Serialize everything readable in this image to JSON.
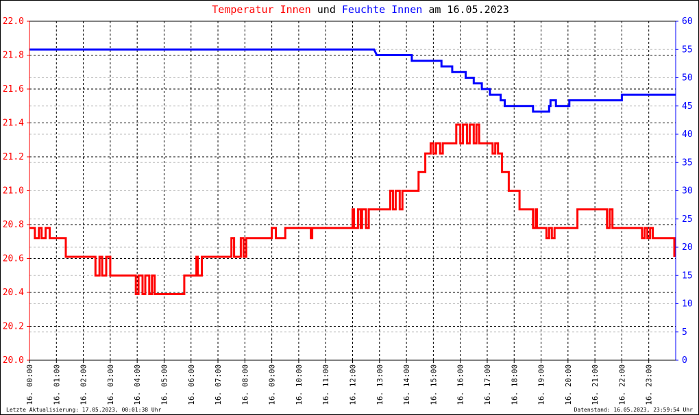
{
  "chart_data": {
    "type": "line",
    "title": {
      "part1": "Temperatur Innen",
      "part2": "und",
      "part3": "Feuchte Innen",
      "part4": "am 16.05.2023"
    },
    "colors": {
      "temperature": "#ff0000",
      "humidity": "#0000ff",
      "title_neutral": "#000000",
      "grid": "#000000",
      "left_axis": "#ff0000",
      "right_axis": "#0000ff"
    },
    "y_left": {
      "min": 20.0,
      "max": 22.0,
      "ticks": [
        20.0,
        20.2,
        20.4,
        20.6,
        20.8,
        21.0,
        21.2,
        21.4,
        21.6,
        21.8,
        22.0
      ],
      "tick_labels": [
        "20.0",
        "20.2",
        "20.4",
        "20.6",
        "20.8",
        "21.0",
        "21.2",
        "21.4",
        "21.6",
        "21.8",
        "22.0"
      ]
    },
    "y_right": {
      "min": 0,
      "max": 60,
      "ticks": [
        0,
        5,
        10,
        15,
        20,
        25,
        30,
        35,
        40,
        45,
        50,
        55,
        60
      ],
      "tick_labels": [
        "0",
        "5",
        "10",
        "15",
        "20",
        "25",
        "30",
        "35",
        "40",
        "45",
        "50",
        "55",
        "60"
      ]
    },
    "x": {
      "min_hour": 0,
      "max_hour": 24,
      "ticks": [
        0,
        1,
        2,
        3,
        4,
        5,
        6,
        7,
        8,
        9,
        10,
        11,
        12,
        13,
        14,
        15,
        16,
        17,
        18,
        19,
        20,
        21,
        22,
        23
      ],
      "tick_labels": [
        "16. 00:00",
        "16. 01:00",
        "16. 02:00",
        "16. 03:00",
        "16. 04:00",
        "16. 05:00",
        "16. 06:00",
        "16. 07:00",
        "16. 08:00",
        "16. 09:00",
        "16. 10:00",
        "16. 11:00",
        "16. 12:00",
        "16. 13:00",
        "16. 14:00",
        "16. 15:00",
        "16. 16:00",
        "16. 17:00",
        "16. 18:00",
        "16. 19:00",
        "16. 20:00",
        "16. 21:00",
        "16. 22:00",
        "16. 23:00"
      ]
    },
    "grid": true,
    "series": [
      {
        "name": "Temperatur Innen",
        "axis": "left",
        "points": [
          [
            0.0,
            20.78
          ],
          [
            0.2,
            20.78
          ],
          [
            0.2,
            20.72
          ],
          [
            0.35,
            20.72
          ],
          [
            0.35,
            20.78
          ],
          [
            0.45,
            20.78
          ],
          [
            0.45,
            20.72
          ],
          [
            0.6,
            20.72
          ],
          [
            0.6,
            20.78
          ],
          [
            0.75,
            20.78
          ],
          [
            0.75,
            20.72
          ],
          [
            1.35,
            20.72
          ],
          [
            1.35,
            20.61
          ],
          [
            2.45,
            20.61
          ],
          [
            2.45,
            20.5
          ],
          [
            2.6,
            20.5
          ],
          [
            2.6,
            20.61
          ],
          [
            2.7,
            20.61
          ],
          [
            2.7,
            20.5
          ],
          [
            2.85,
            20.5
          ],
          [
            2.85,
            20.61
          ],
          [
            3.0,
            20.61
          ],
          [
            3.0,
            20.5
          ],
          [
            3.95,
            20.5
          ],
          [
            3.95,
            20.39
          ],
          [
            4.05,
            20.39
          ],
          [
            4.05,
            20.5
          ],
          [
            4.2,
            20.5
          ],
          [
            4.2,
            20.39
          ],
          [
            4.3,
            20.39
          ],
          [
            4.3,
            20.5
          ],
          [
            4.45,
            20.5
          ],
          [
            4.45,
            20.39
          ],
          [
            4.55,
            20.39
          ],
          [
            4.55,
            20.5
          ],
          [
            4.65,
            20.5
          ],
          [
            4.65,
            20.39
          ],
          [
            5.75,
            20.39
          ],
          [
            5.75,
            20.5
          ],
          [
            6.2,
            20.5
          ],
          [
            6.2,
            20.61
          ],
          [
            6.25,
            20.61
          ],
          [
            6.25,
            20.5
          ],
          [
            6.4,
            20.5
          ],
          [
            6.4,
            20.61
          ],
          [
            7.5,
            20.61
          ],
          [
            7.5,
            20.72
          ],
          [
            7.6,
            20.72
          ],
          [
            7.6,
            20.61
          ],
          [
            7.85,
            20.61
          ],
          [
            7.85,
            20.72
          ],
          [
            7.95,
            20.72
          ],
          [
            7.95,
            20.61
          ],
          [
            8.05,
            20.61
          ],
          [
            8.05,
            20.72
          ],
          [
            9.0,
            20.72
          ],
          [
            9.0,
            20.78
          ],
          [
            9.15,
            20.78
          ],
          [
            9.15,
            20.72
          ],
          [
            9.5,
            20.72
          ],
          [
            9.5,
            20.78
          ],
          [
            10.45,
            20.78
          ],
          [
            10.45,
            20.72
          ],
          [
            10.5,
            20.72
          ],
          [
            10.5,
            20.78
          ],
          [
            12.0,
            20.78
          ],
          [
            12.0,
            20.89
          ],
          [
            12.05,
            20.89
          ],
          [
            12.05,
            20.78
          ],
          [
            12.2,
            20.78
          ],
          [
            12.2,
            20.89
          ],
          [
            12.3,
            20.89
          ],
          [
            12.3,
            20.78
          ],
          [
            12.35,
            20.78
          ],
          [
            12.35,
            20.89
          ],
          [
            12.5,
            20.89
          ],
          [
            12.5,
            20.78
          ],
          [
            12.6,
            20.78
          ],
          [
            12.6,
            20.89
          ],
          [
            13.4,
            20.89
          ],
          [
            13.4,
            21.0
          ],
          [
            13.5,
            21.0
          ],
          [
            13.5,
            20.89
          ],
          [
            13.6,
            20.89
          ],
          [
            13.6,
            21.0
          ],
          [
            13.75,
            21.0
          ],
          [
            13.75,
            20.89
          ],
          [
            13.85,
            20.89
          ],
          [
            13.85,
            21.0
          ],
          [
            14.45,
            21.0
          ],
          [
            14.45,
            21.11
          ],
          [
            14.7,
            21.11
          ],
          [
            14.7,
            21.22
          ],
          [
            14.9,
            21.22
          ],
          [
            14.9,
            21.28
          ],
          [
            15.0,
            21.28
          ],
          [
            15.0,
            21.22
          ],
          [
            15.1,
            21.22
          ],
          [
            15.1,
            21.28
          ],
          [
            15.25,
            21.28
          ],
          [
            15.25,
            21.22
          ],
          [
            15.35,
            21.22
          ],
          [
            15.35,
            21.28
          ],
          [
            15.85,
            21.28
          ],
          [
            15.85,
            21.39
          ],
          [
            16.0,
            21.39
          ],
          [
            16.0,
            21.28
          ],
          [
            16.1,
            21.28
          ],
          [
            16.1,
            21.39
          ],
          [
            16.25,
            21.39
          ],
          [
            16.25,
            21.28
          ],
          [
            16.35,
            21.28
          ],
          [
            16.35,
            21.39
          ],
          [
            16.5,
            21.39
          ],
          [
            16.5,
            21.28
          ],
          [
            16.6,
            21.28
          ],
          [
            16.6,
            21.39
          ],
          [
            16.7,
            21.39
          ],
          [
            16.7,
            21.28
          ],
          [
            17.2,
            21.28
          ],
          [
            17.2,
            21.22
          ],
          [
            17.3,
            21.22
          ],
          [
            17.3,
            21.28
          ],
          [
            17.4,
            21.28
          ],
          [
            17.4,
            21.22
          ],
          [
            17.55,
            21.22
          ],
          [
            17.55,
            21.11
          ],
          [
            17.8,
            21.11
          ],
          [
            17.8,
            21.0
          ],
          [
            18.2,
            21.0
          ],
          [
            18.2,
            20.89
          ],
          [
            18.7,
            20.89
          ],
          [
            18.7,
            20.78
          ],
          [
            18.8,
            20.78
          ],
          [
            18.8,
            20.89
          ],
          [
            18.85,
            20.89
          ],
          [
            18.85,
            20.78
          ],
          [
            19.2,
            20.78
          ],
          [
            19.2,
            20.72
          ],
          [
            19.3,
            20.72
          ],
          [
            19.3,
            20.78
          ],
          [
            19.4,
            20.78
          ],
          [
            19.4,
            20.72
          ],
          [
            19.5,
            20.72
          ],
          [
            19.5,
            20.78
          ],
          [
            20.35,
            20.78
          ],
          [
            20.35,
            20.89
          ],
          [
            21.45,
            20.89
          ],
          [
            21.45,
            20.78
          ],
          [
            21.55,
            20.78
          ],
          [
            21.55,
            20.89
          ],
          [
            21.65,
            20.89
          ],
          [
            21.65,
            20.78
          ],
          [
            22.75,
            20.78
          ],
          [
            22.75,
            20.72
          ],
          [
            22.85,
            20.72
          ],
          [
            22.85,
            20.78
          ],
          [
            22.95,
            20.78
          ],
          [
            22.95,
            20.72
          ],
          [
            23.05,
            20.72
          ],
          [
            23.05,
            20.78
          ],
          [
            23.15,
            20.78
          ],
          [
            23.15,
            20.72
          ],
          [
            23.95,
            20.72
          ],
          [
            23.95,
            20.61
          ]
        ]
      },
      {
        "name": "Feuchte Innen",
        "axis": "right",
        "points": [
          [
            0.0,
            55
          ],
          [
            12.8,
            55
          ],
          [
            12.85,
            54.5
          ],
          [
            12.9,
            54
          ],
          [
            14.2,
            54
          ],
          [
            14.2,
            53
          ],
          [
            15.3,
            53
          ],
          [
            15.3,
            52
          ],
          [
            15.7,
            52
          ],
          [
            15.7,
            51
          ],
          [
            16.2,
            51
          ],
          [
            16.2,
            50
          ],
          [
            16.5,
            50
          ],
          [
            16.5,
            49
          ],
          [
            16.8,
            49
          ],
          [
            16.8,
            48
          ],
          [
            17.1,
            48
          ],
          [
            17.1,
            47
          ],
          [
            17.5,
            47
          ],
          [
            17.5,
            46
          ],
          [
            17.65,
            46
          ],
          [
            17.65,
            45
          ],
          [
            18.7,
            45
          ],
          [
            18.7,
            44
          ],
          [
            19.3,
            44
          ],
          [
            19.3,
            45
          ],
          [
            19.35,
            45
          ],
          [
            19.35,
            46
          ],
          [
            19.55,
            46
          ],
          [
            19.55,
            45
          ],
          [
            20.05,
            45
          ],
          [
            20.05,
            46
          ],
          [
            22.0,
            46
          ],
          [
            22.0,
            47
          ],
          [
            24.0,
            47
          ]
        ]
      }
    ]
  },
  "footer": {
    "left": "Letzte Aktualisierung: 17.05.2023, 00:01:38 Uhr",
    "right": "Datenstand: 16.05.2023, 23:59:54 Uhr"
  }
}
